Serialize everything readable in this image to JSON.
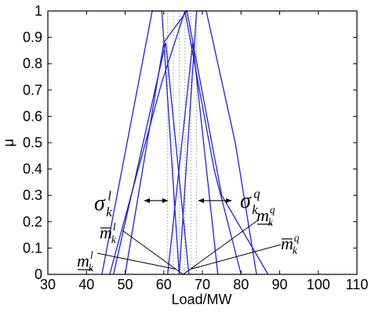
{
  "chart_data": {
    "type": "line",
    "xlabel": "Load/MW",
    "ylabel": "μ",
    "xlim": [
      30,
      110
    ],
    "ylim": [
      0,
      1
    ],
    "xticks": [
      30,
      40,
      50,
      60,
      70,
      80,
      90,
      100,
      110
    ],
    "yticks": [
      0,
      0.1,
      0.2,
      0.3,
      0.4,
      0.5,
      0.6,
      0.7,
      0.8,
      0.9,
      1
    ],
    "ytick_labels": [
      "0",
      "0.1",
      "0.2",
      "0.3",
      "0.4",
      "0.5",
      "0.6",
      "0.7",
      "0.8",
      "0.9",
      "1"
    ],
    "grid": false,
    "line_color": "#2020e0",
    "dotted_color": "#999999",
    "series": [
      {
        "x": [
          44,
          50.5,
          57,
          59.5,
          64
        ],
        "y": [
          0,
          0.5,
          1,
          1,
          0
        ]
      },
      {
        "x": [
          46,
          59.5,
          65.5,
          73,
          80
        ],
        "y": [
          0,
          0.73,
          1,
          0.4,
          0
        ]
      },
      {
        "x": [
          50,
          60,
          66,
          75,
          87
        ],
        "y": [
          0,
          0.88,
          1,
          0.3,
          0
        ]
      },
      {
        "x": [
          64,
          68.5,
          71,
          78.5,
          84
        ],
        "y": [
          0,
          1,
          1,
          0.5,
          0
        ]
      },
      {
        "x": [
          47,
          60.5,
          66.5
        ],
        "y": [
          0,
          0.88,
          0
        ]
      },
      {
        "x": [
          61,
          67.5,
          74
        ],
        "y": [
          0,
          0.88,
          0
        ]
      }
    ],
    "dotted_x": [
      61,
      62.5,
      64,
      65.5,
      67,
      68.5
    ],
    "annotations": [
      {
        "base": "σ",
        "sup": "l",
        "sub": "k",
        "bar": "none",
        "arrow_x": [
          55,
          61
        ],
        "arrow_y": 0.28
      },
      {
        "base": "σ",
        "sup": "q",
        "sub": "k",
        "bar": "none",
        "arrow_x": [
          69,
          77.5
        ],
        "arrow_y": 0.28
      },
      {
        "base": "m",
        "sup": "l",
        "sub": "k",
        "bar": "over",
        "leader_to": [
          65,
          0
        ]
      },
      {
        "base": "m",
        "sup": "l",
        "sub": "k",
        "bar": "under",
        "leader_to": [
          63,
          0.02
        ]
      },
      {
        "base": "m",
        "sup": "q",
        "sub": "k",
        "bar": "under",
        "leader_to": [
          65,
          0
        ]
      },
      {
        "base": "m",
        "sup": "q",
        "sub": "k",
        "bar": "over",
        "leader_to": [
          67,
          0.02
        ]
      }
    ]
  }
}
